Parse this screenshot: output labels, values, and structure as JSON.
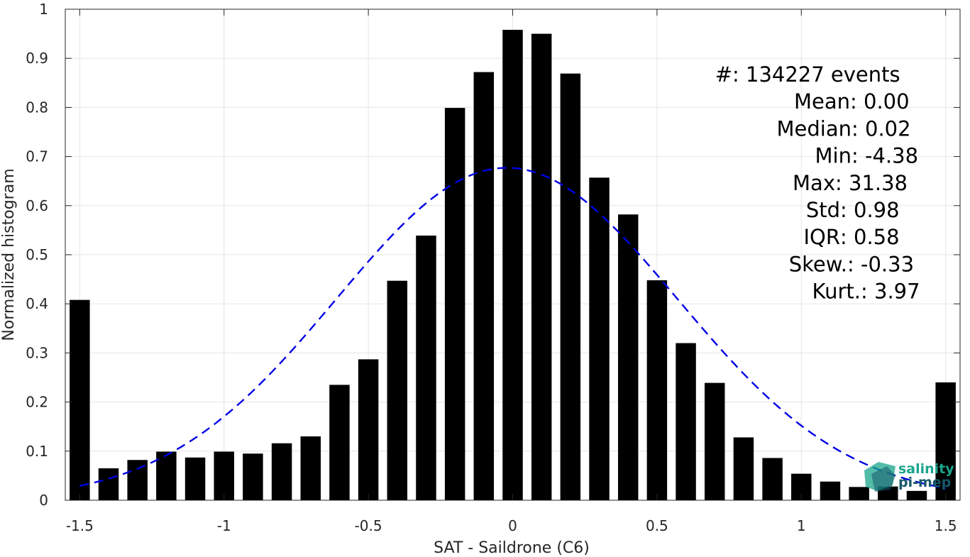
{
  "chart_data": {
    "type": "bar",
    "xlabel": "SAT - Saildrone (C6)",
    "ylabel": "Normalized histogram",
    "xlim": [
      -1.55,
      1.55
    ],
    "ylim": [
      0,
      1
    ],
    "xticks": [
      -1.5,
      -1,
      -0.5,
      0,
      0.5,
      1,
      1.5
    ],
    "xtick_labels": [
      "-1.5",
      "-1",
      "-0.5",
      "0",
      "0.5",
      "1",
      "1.5"
    ],
    "yticks": [
      0,
      0.1,
      0.2,
      0.3,
      0.4,
      0.5,
      0.6,
      0.7,
      0.8,
      0.9,
      1
    ],
    "ytick_labels": [
      "0",
      "0.1",
      "0.2",
      "0.3",
      "0.4",
      "0.5",
      "0.6",
      "0.7",
      "0.8",
      "0.9",
      "1"
    ],
    "grid": true,
    "bar_color": "#000000",
    "bar_width": 0.07,
    "x": [
      -1.5,
      -1.4,
      -1.3,
      -1.2,
      -1.1,
      -1.0,
      -0.9,
      -0.8,
      -0.7,
      -0.6,
      -0.5,
      -0.4,
      -0.3,
      -0.2,
      -0.1,
      0.0,
      0.1,
      0.2,
      0.3,
      0.4,
      0.5,
      0.6,
      0.7,
      0.8,
      0.9,
      1.0,
      1.1,
      1.2,
      1.3,
      1.4,
      1.5
    ],
    "values": [
      0.408,
      0.065,
      0.082,
      0.099,
      0.087,
      0.099,
      0.095,
      0.116,
      0.13,
      0.235,
      0.287,
      0.447,
      0.539,
      0.799,
      0.872,
      0.958,
      0.95,
      0.869,
      0.657,
      0.582,
      0.448,
      0.32,
      0.239,
      0.128,
      0.086,
      0.054,
      0.038,
      0.027,
      0.028,
      0.019,
      0.24
    ],
    "fit_curve": {
      "style": "dashed",
      "color": "#0000e6",
      "mean": -0.02,
      "std": 0.59,
      "peak": 0.677,
      "x_range": [
        -1.5,
        1.5
      ]
    },
    "stats": [
      {
        "key": "#  ",
        "sep": ": ",
        "value": "134227 events"
      },
      {
        "key": "Mean ",
        "sep": ": ",
        "value": "0.00"
      },
      {
        "key": "Median ",
        "sep": ": ",
        "value": "0.02"
      },
      {
        "key": "Min ",
        "sep": ": ",
        "value": "-4.38"
      },
      {
        "key": "Max ",
        "sep": ": ",
        "value": "31.38"
      },
      {
        "key": "Std ",
        "sep": ": ",
        "value": "0.98"
      },
      {
        "key": "IQR ",
        "sep": ": ",
        "value": "0.58"
      },
      {
        "key": "Skew. ",
        "sep": ": ",
        "value": "-0.33"
      },
      {
        "key": "Kurt. ",
        "sep": ": ",
        "value": "3.97"
      }
    ],
    "logo": {
      "line1": "salinity",
      "line2": "pi-mep",
      "color1": "#1aa58c",
      "color2": "#17586a"
    }
  }
}
